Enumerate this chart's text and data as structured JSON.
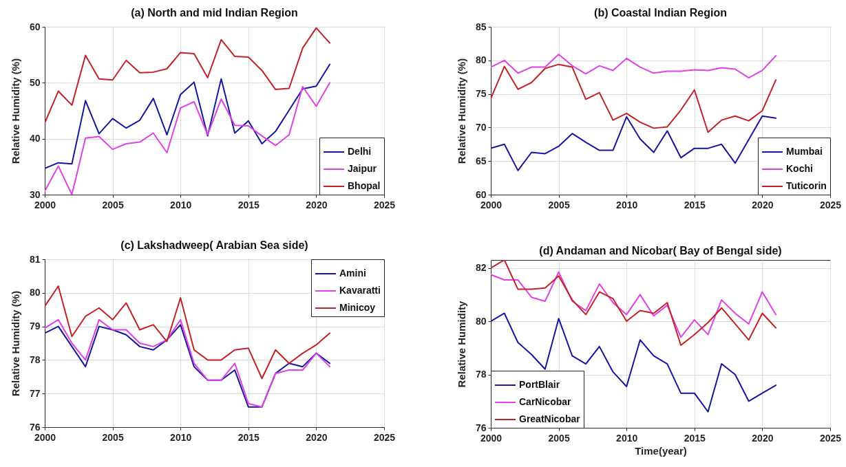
{
  "chart_data": [
    {
      "type": "line",
      "title": "(a) North and mid Indian Region",
      "ylabel": "Relative Humidity (%)",
      "x": [
        2000,
        2001,
        2002,
        2003,
        2004,
        2005,
        2006,
        2007,
        2008,
        2009,
        2010,
        2011,
        2012,
        2013,
        2014,
        2015,
        2016,
        2017,
        2018,
        2019,
        2020,
        2021
      ],
      "xlim": [
        2000,
        2025
      ],
      "xticks": [
        2000,
        2005,
        2010,
        2015,
        2020,
        2025
      ],
      "ylim": [
        30,
        60
      ],
      "yticks": [
        30,
        40,
        50,
        60
      ],
      "grid": true,
      "legend": "bottom right",
      "series": [
        {
          "name": "Delhi",
          "color": "#1515a3",
          "values": [
            34.7,
            35.7,
            35.5,
            46.8,
            40.9,
            43.6,
            41.9,
            43.3,
            47.2,
            40.7,
            47.9,
            50.1,
            40.5,
            50.7,
            41.0,
            43.2,
            39.1,
            41.3,
            45.1,
            48.9,
            49.4,
            53.3
          ]
        },
        {
          "name": "Jaipur",
          "color": "#e040e6",
          "values": [
            30.6,
            35.1,
            30.0,
            40.1,
            40.4,
            38.1,
            39.1,
            39.4,
            41.0,
            37.5,
            45.5,
            46.6,
            40.7,
            47.1,
            42.4,
            42.3,
            40.5,
            38.8,
            40.7,
            49.3,
            45.8,
            50.0
          ]
        },
        {
          "name": "Bhopal",
          "color": "#c42127",
          "values": [
            42.8,
            48.5,
            46.0,
            54.9,
            50.7,
            50.5,
            54.0,
            51.8,
            51.9,
            52.5,
            55.4,
            55.2,
            50.9,
            57.7,
            54.7,
            54.6,
            52.2,
            48.8,
            49.0,
            56.2,
            59.8,
            57.1
          ]
        }
      ]
    },
    {
      "type": "line",
      "title": "(b) Coastal Indian Region",
      "ylabel": "Relative Humidity (%)",
      "x": [
        2000,
        2001,
        2002,
        2003,
        2004,
        2005,
        2006,
        2007,
        2008,
        2009,
        2010,
        2011,
        2012,
        2013,
        2014,
        2015,
        2016,
        2017,
        2018,
        2019,
        2020,
        2021
      ],
      "xlim": [
        2000,
        2025
      ],
      "xticks": [
        2000,
        2005,
        2010,
        2015,
        2020,
        2025
      ],
      "ylim": [
        60,
        85
      ],
      "yticks": [
        60,
        65,
        70,
        75,
        80,
        85
      ],
      "grid": true,
      "legend": "bottom right",
      "series": [
        {
          "name": "Mumbai",
          "color": "#1515a3",
          "values": [
            66.9,
            67.5,
            63.6,
            66.3,
            66.1,
            67.2,
            69.1,
            67.8,
            66.6,
            66.6,
            71.6,
            68.3,
            66.3,
            69.5,
            65.5,
            66.9,
            66.9,
            67.5,
            64.7,
            68.2,
            71.7,
            71.4
          ]
        },
        {
          "name": "Kochi",
          "color": "#e040e6",
          "values": [
            79.0,
            80.0,
            78.1,
            79.0,
            79.0,
            80.9,
            79.2,
            78.0,
            79.2,
            78.5,
            80.3,
            79.0,
            78.1,
            78.4,
            78.4,
            78.6,
            78.5,
            78.9,
            78.7,
            77.4,
            78.5,
            80.7
          ]
        },
        {
          "name": "Tuticorin",
          "color": "#c42127",
          "values": [
            74.3,
            79.1,
            75.7,
            76.7,
            78.8,
            79.4,
            79.0,
            74.2,
            75.2,
            71.1,
            72.1,
            70.8,
            69.9,
            70.1,
            72.6,
            75.6,
            69.3,
            71.1,
            71.7,
            71.0,
            72.5,
            77.1
          ]
        }
      ]
    },
    {
      "type": "line",
      "title": "(c) Lakshadweep( Arabian Sea side)",
      "ylabel": "Relative Humidity (%)",
      "x": [
        2000,
        2001,
        2002,
        2003,
        2004,
        2005,
        2006,
        2007,
        2008,
        2009,
        2010,
        2011,
        2012,
        2013,
        2014,
        2015,
        2016,
        2017,
        2018,
        2019,
        2020,
        2021
      ],
      "xlim": [
        2000,
        2025
      ],
      "xticks": [
        2000,
        2005,
        2010,
        2015,
        2020,
        2025
      ],
      "ylim": [
        76,
        81
      ],
      "yticks": [
        76,
        77,
        78,
        79,
        80,
        81
      ],
      "grid": true,
      "legend": "top right",
      "series": [
        {
          "name": "Amini",
          "color": "#1515a3",
          "values": [
            78.8,
            79.0,
            78.4,
            77.8,
            79.0,
            78.9,
            78.75,
            78.4,
            78.3,
            78.6,
            79.05,
            77.8,
            77.4,
            77.4,
            77.7,
            76.6,
            76.6,
            77.6,
            77.9,
            77.8,
            78.2,
            77.9
          ]
        },
        {
          "name": "Kavaratti",
          "color": "#e040e6",
          "values": [
            78.95,
            79.2,
            78.5,
            78.0,
            79.2,
            78.9,
            78.9,
            78.5,
            78.4,
            78.6,
            79.2,
            77.9,
            77.4,
            77.4,
            77.9,
            76.7,
            76.6,
            77.6,
            77.7,
            77.7,
            78.2,
            77.8
          ]
        },
        {
          "name": "Minicoy",
          "color": "#c42127",
          "values": [
            79.6,
            80.2,
            78.7,
            79.3,
            79.55,
            79.2,
            79.7,
            78.9,
            79.05,
            78.55,
            79.85,
            78.3,
            78.0,
            78.0,
            78.3,
            78.35,
            77.45,
            78.3,
            77.9,
            78.2,
            78.45,
            78.8
          ]
        }
      ]
    },
    {
      "type": "line",
      "title": "(d) Andaman and Nicobar( Bay of Bengal side)",
      "xlabel": "Time(year)",
      "ylabel": "Relative Humidity",
      "x": [
        2000,
        2001,
        2002,
        2003,
        2004,
        2005,
        2006,
        2007,
        2008,
        2009,
        2010,
        2011,
        2012,
        2013,
        2014,
        2015,
        2016,
        2017,
        2018,
        2019,
        2020,
        2021
      ],
      "xlim": [
        2000,
        2025
      ],
      "xticks": [
        2000,
        2005,
        2010,
        2015,
        2020,
        2025
      ],
      "ylim": [
        76,
        82.3
      ],
      "yticks": [
        76,
        78,
        80,
        82
      ],
      "grid": true,
      "legend": "bottom left",
      "series": [
        {
          "name": "PortBlair",
          "color": "#1515a3",
          "values": [
            80.0,
            80.3,
            79.2,
            78.75,
            78.2,
            80.1,
            78.7,
            78.4,
            79.05,
            78.1,
            77.55,
            79.3,
            78.7,
            78.4,
            77.3,
            77.3,
            76.6,
            78.4,
            78.0,
            77.0,
            77.3,
            77.6
          ]
        },
        {
          "name": "CarNicobar",
          "color": "#e040e6",
          "values": [
            81.75,
            81.55,
            81.55,
            80.9,
            80.75,
            81.85,
            80.75,
            80.4,
            81.4,
            80.7,
            80.25,
            81.0,
            80.2,
            80.6,
            79.4,
            80.05,
            79.5,
            80.8,
            80.3,
            79.9,
            81.1,
            80.25
          ]
        },
        {
          "name": "GreatNicobar",
          "color": "#c42127",
          "values": [
            82.0,
            82.3,
            81.2,
            81.2,
            81.25,
            81.7,
            80.8,
            80.25,
            81.1,
            80.85,
            80.0,
            80.4,
            80.3,
            80.7,
            79.1,
            79.5,
            79.95,
            80.5,
            79.9,
            79.3,
            80.3,
            79.75
          ]
        }
      ]
    }
  ]
}
